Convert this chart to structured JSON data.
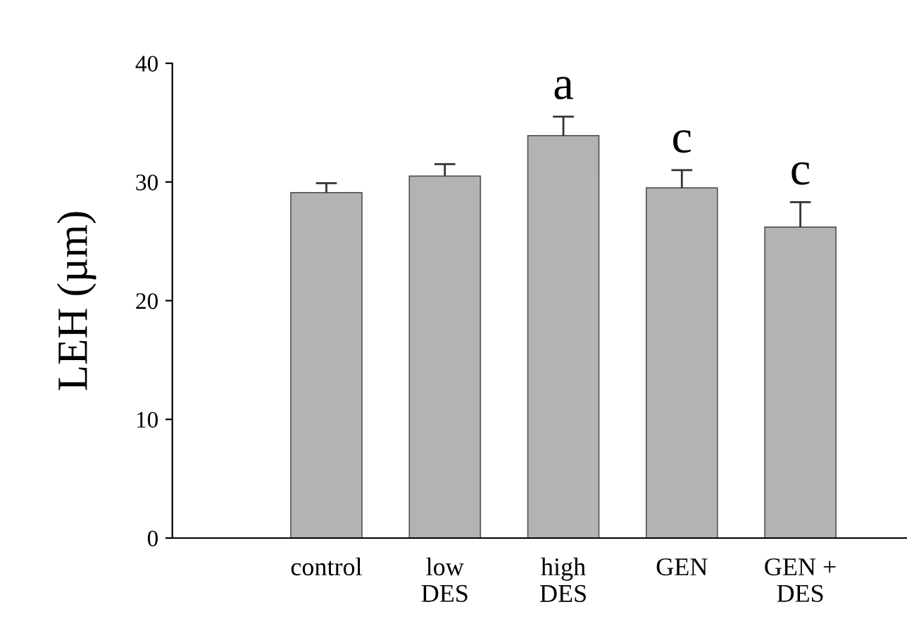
{
  "chart_data": {
    "type": "bar",
    "ylabel": "LEH (µm)",
    "categories": [
      "control",
      "low\nDES",
      "high\nDES",
      "GEN",
      "GEN +\nDES"
    ],
    "values": [
      29.1,
      30.5,
      33.9,
      29.5,
      26.2
    ],
    "errors": [
      [
        29.1,
        29.9
      ],
      [
        30.5,
        31.5
      ],
      [
        33.9,
        35.5
      ],
      [
        29.5,
        31.0
      ],
      [
        26.2,
        28.3
      ]
    ],
    "color": "#b3b3b3",
    "ylim": [
      0,
      40
    ],
    "yticks": [
      0,
      10,
      20,
      30,
      40
    ],
    "grid": false,
    "legend": false,
    "annotations": [
      "a",
      "c",
      "c"
    ]
  }
}
